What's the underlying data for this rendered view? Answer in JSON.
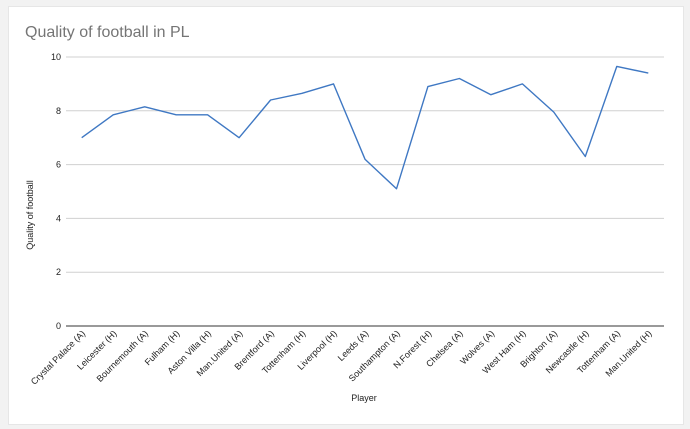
{
  "chart_data": {
    "type": "line",
    "title": "Quality of football in PL",
    "xlabel": "Player",
    "ylabel": "Quality of football",
    "ylim": [
      0,
      10
    ],
    "yticks": [
      0,
      2,
      4,
      6,
      8,
      10
    ],
    "grid": true,
    "legend": "none",
    "categories": [
      "Crystal Palace (A)",
      "Leicester (H)",
      "Bournemouth (A)",
      "Fulham (H)",
      "Aston Villa (H)",
      "Man.United (A)",
      "Brentford (A)",
      "Tottenham (H)",
      "Liverpool (H)",
      "Leeds (A)",
      "Southampton (A)",
      "N.Forest (H)",
      "Chelsea (A)",
      "Wolves (A)",
      "West Ham (H)",
      "Brighton (A)",
      "Newcastle (H)",
      "Tottenham (A)",
      "Man.United (H)"
    ],
    "series": [
      {
        "values": [
          7.0,
          7.85,
          8.15,
          7.85,
          7.85,
          7.0,
          8.4,
          8.65,
          9.0,
          6.2,
          5.1,
          8.9,
          9.2,
          8.6,
          9.0,
          7.95,
          6.3,
          9.65,
          9.4
        ],
        "color": "#3f78c3"
      }
    ]
  }
}
